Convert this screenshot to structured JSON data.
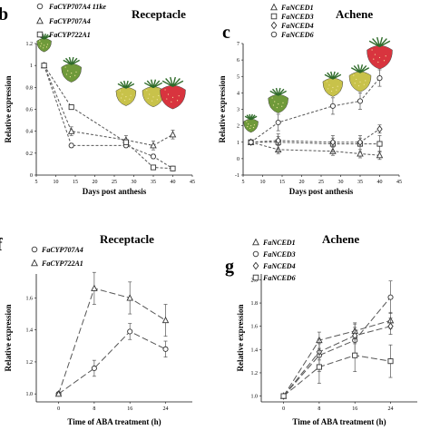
{
  "panels": {
    "b": {
      "letter": "b",
      "title": "Receptacle",
      "legend": [
        {
          "marker": "circle",
          "label": "FaCYP707A4 11ke"
        },
        {
          "marker": "triangle",
          "label": "FaCYP707A4"
        },
        {
          "marker": "square",
          "label": "FaCYP722A1"
        }
      ]
    },
    "c": {
      "letter": "c",
      "title": "Achene",
      "legend": [
        {
          "marker": "triangle",
          "label": "FaNCED1"
        },
        {
          "marker": "square",
          "label": "FaNCED3"
        },
        {
          "marker": "diamond",
          "label": "FaNCED4"
        },
        {
          "marker": "circle",
          "label": "FaNCED6"
        }
      ]
    },
    "f": {
      "letter": "f",
      "title": "Receptacle",
      "legend": [
        {
          "marker": "circle",
          "label": "FaCYP707A4"
        },
        {
          "marker": "triangle",
          "label": "FaCYP722A1"
        }
      ]
    },
    "g": {
      "letter": "g",
      "title": "Achene",
      "legend": [
        {
          "marker": "triangle",
          "label": "FaNCED1"
        },
        {
          "marker": "circle",
          "label": "FaNCED3"
        },
        {
          "marker": "diamond",
          "label": "FaNCED4"
        },
        {
          "marker": "square",
          "label": "FaNCED6"
        }
      ]
    }
  },
  "colors": {
    "line": "#555555",
    "axis": "#111111",
    "fruit_green": "#6f9a3a",
    "fruit_yellow": "#c8c24a",
    "fruit_red": "#d8343e",
    "leaf": "#2f6b2a"
  },
  "chart_data": [
    {
      "id": "b",
      "type": "line",
      "title": "Receptacle",
      "xlabel": "Days post anthesis",
      "ylabel": "Relative expression",
      "xlim": [
        5,
        45
      ],
      "xticks": [
        5,
        10,
        15,
        20,
        25,
        30,
        35,
        40,
        45
      ],
      "ylim": [
        0,
        1.2
      ],
      "yticks": [
        0,
        0.2,
        0.4,
        0.6,
        0.8,
        1,
        1.2
      ],
      "x": [
        7,
        14,
        28,
        35,
        40
      ],
      "series": [
        {
          "name": "FaCYP707A4 11ke",
          "marker": "circle",
          "values": [
            1.0,
            0.27,
            0.27,
            0.17,
            0.06
          ]
        },
        {
          "name": "FaCYP707A4",
          "marker": "triangle",
          "values": [
            1.0,
            0.4,
            0.32,
            0.27,
            0.37
          ]
        },
        {
          "name": "FaCYP722A1",
          "marker": "square",
          "values": [
            1.0,
            0.62,
            0.3,
            0.07,
            0.06
          ]
        }
      ],
      "fruit_stages_x": [
        7,
        14,
        28,
        35,
        40
      ]
    },
    {
      "id": "c",
      "type": "line",
      "title": "Achene",
      "xlabel": "Days post anthesis",
      "ylabel": "Relative expression",
      "xlim": [
        5,
        45
      ],
      "xticks": [
        5,
        10,
        15,
        20,
        25,
        30,
        35,
        40,
        45
      ],
      "ylim": [
        -1,
        7
      ],
      "yticks": [
        -1,
        0,
        1,
        2,
        3,
        4,
        5,
        6,
        7
      ],
      "x": [
        7,
        14,
        28,
        35,
        40
      ],
      "series": [
        {
          "name": "FaNCED1",
          "marker": "triangle",
          "values": [
            1.0,
            0.55,
            0.45,
            0.3,
            0.2
          ]
        },
        {
          "name": "FaNCED3",
          "marker": "square",
          "values": [
            1.0,
            1.0,
            0.9,
            0.9,
            0.9
          ]
        },
        {
          "name": "FaNCED4",
          "marker": "diamond",
          "values": [
            1.0,
            1.1,
            1.0,
            1.0,
            1.8
          ]
        },
        {
          "name": "FaNCED6",
          "marker": "circle",
          "values": [
            1.0,
            2.2,
            3.2,
            3.5,
            4.9
          ]
        }
      ],
      "fruit_stages_x": [
        7,
        14,
        28,
        35,
        40
      ]
    },
    {
      "id": "f",
      "type": "line",
      "title": "Receptacle",
      "xlabel": "Time of ABA treatment (h)",
      "ylabel": "Relative expression",
      "xlim": [
        -5,
        30
      ],
      "xticks": [
        0,
        8,
        16,
        24
      ],
      "ylim": [
        0.95,
        1.75
      ],
      "yticks": [
        1.0,
        1.2,
        1.4,
        1.6
      ],
      "x": [
        0,
        8,
        16,
        24
      ],
      "series": [
        {
          "name": "FaCYP707A4",
          "marker": "circle",
          "values": [
            1.0,
            1.16,
            1.39,
            1.28
          ]
        },
        {
          "name": "FaCYP722A1",
          "marker": "triangle",
          "values": [
            1.0,
            1.66,
            1.6,
            1.46
          ]
        }
      ]
    },
    {
      "id": "g",
      "type": "line",
      "title": "Achene",
      "xlabel": "Time of ABA treatment (h)",
      "ylabel": "Relative expression",
      "xlim": [
        -5,
        30
      ],
      "xticks": [
        0,
        8,
        16,
        24
      ],
      "ylim": [
        0.95,
        2.05
      ],
      "yticks": [
        1.0,
        1.2,
        1.4,
        1.6,
        1.8,
        2.0
      ],
      "x": [
        0,
        8,
        16,
        24
      ],
      "series": [
        {
          "name": "FaNCED1",
          "marker": "triangle",
          "values": [
            1.0,
            1.48,
            1.56,
            1.65
          ]
        },
        {
          "name": "FaNCED3",
          "marker": "circle",
          "values": [
            1.0,
            1.35,
            1.48,
            1.85
          ]
        },
        {
          "name": "FaNCED4",
          "marker": "diamond",
          "values": [
            1.0,
            1.38,
            1.52,
            1.6
          ]
        },
        {
          "name": "FaNCED6",
          "marker": "square",
          "values": [
            1.0,
            1.25,
            1.35,
            1.3
          ]
        }
      ]
    }
  ]
}
